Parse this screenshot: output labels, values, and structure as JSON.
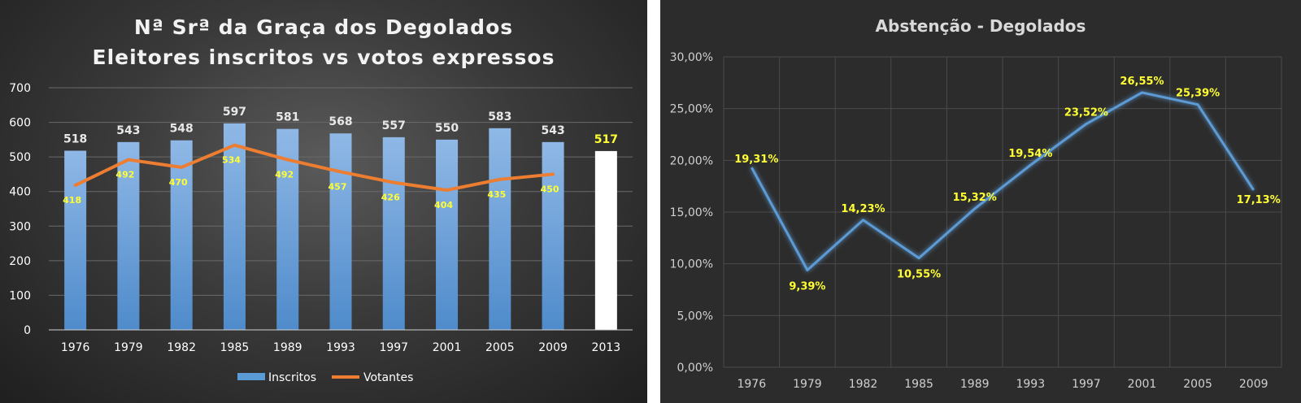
{
  "chart_data": [
    {
      "type": "bar",
      "title": "Nª Srª da Graça dos Degolados",
      "subtitle": "Eleitores inscritos vs votos expressos",
      "categories": [
        "1976",
        "1979",
        "1982",
        "1985",
        "1989",
        "1993",
        "1997",
        "2001",
        "2005",
        "2009",
        "2013"
      ],
      "ylim": [
        0,
        700
      ],
      "yticks": [
        0,
        100,
        200,
        300,
        400,
        500,
        600,
        700
      ],
      "grid": true,
      "legend": "bottom",
      "series": [
        {
          "name": "Inscritos",
          "type": "bar",
          "color": "#5b9bd5",
          "values": [
            518,
            543,
            548,
            597,
            581,
            568,
            557,
            550,
            583,
            543,
            517
          ]
        },
        {
          "name": "Votantes",
          "type": "line",
          "color": "#ed7d31",
          "values": [
            418,
            492,
            470,
            534,
            492,
            457,
            426,
            404,
            435,
            450,
            null
          ]
        }
      ],
      "highlight": {
        "category": "2013",
        "color": "#ffffff",
        "label_color": "#ffff33"
      }
    },
    {
      "type": "line",
      "title": "Abstenção - Degolados",
      "categories": [
        "1976",
        "1979",
        "1982",
        "1985",
        "1989",
        "1993",
        "1997",
        "2001",
        "2005",
        "2009"
      ],
      "ylim": [
        0,
        30
      ],
      "yticks": [
        "0,00%",
        "5,00%",
        "10,00%",
        "15,00%",
        "20,00%",
        "25,00%",
        "30,00%"
      ],
      "grid": true,
      "series": [
        {
          "color": "#5b9bd5",
          "values": [
            19.31,
            9.39,
            14.23,
            10.55,
            15.32,
            19.54,
            23.52,
            26.55,
            25.39,
            17.13
          ],
          "labels": [
            "19,31%",
            "9,39%",
            "14,23%",
            "10,55%",
            "15,32%",
            "19,54%",
            "23,52%",
            "26,55%",
            "25,39%",
            "17,13%"
          ]
        }
      ]
    }
  ]
}
